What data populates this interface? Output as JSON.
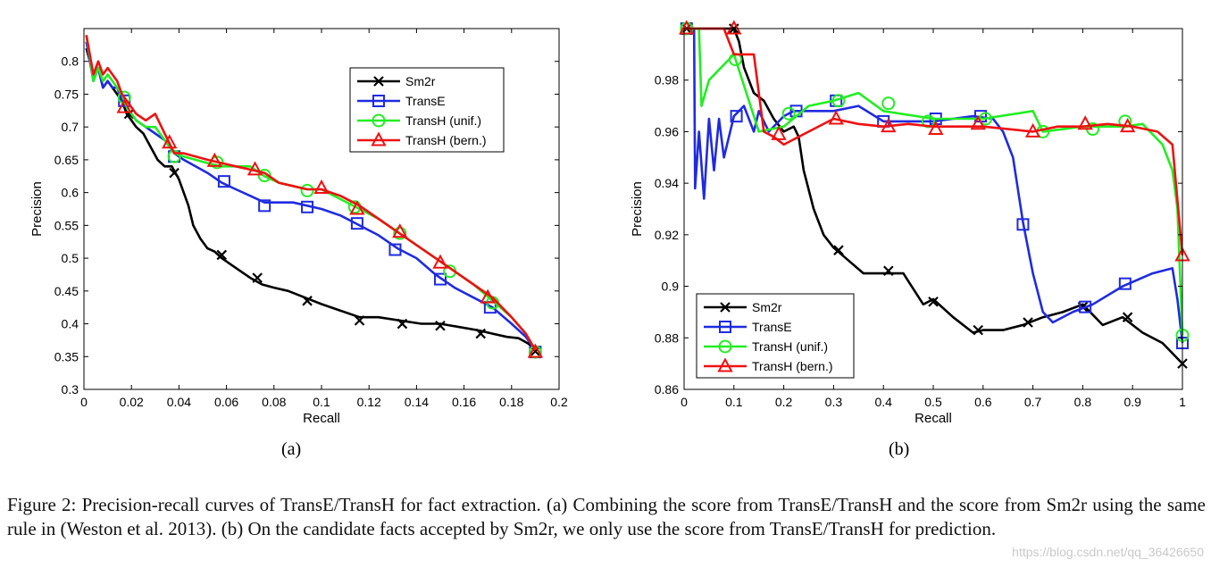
{
  "colors": {
    "Sm2r": "#000000",
    "TransE": "#1f2be0",
    "TransH_unif": "#22ee22",
    "TransH_bern": "#ee1111"
  },
  "panel_labels": [
    "(a)",
    "(b)"
  ],
  "caption": "Figure 2: Precision-recall curves of TransE/TransH for fact extraction. (a) Combining the score from TransE/TransH and the score from Sm2r using the same rule in (Weston et al. 2013). (b) On the candidate facts accepted by Sm2r, we only use the score from TransE/TransH for prediction.",
  "watermark": "https://blog.csdn.net/qq_36426650",
  "chart_data": [
    {
      "type": "line",
      "panel": "(a)",
      "xlabel": "Recall",
      "ylabel": "Precision",
      "xlim": [
        0,
        0.2
      ],
      "ylim": [
        0.3,
        0.85
      ],
      "xticks": [
        0,
        0.02,
        0.04,
        0.06,
        0.08,
        0.1,
        0.12,
        0.14,
        0.16,
        0.18,
        0.2
      ],
      "yticks": [
        0.3,
        0.35,
        0.4,
        0.45,
        0.5,
        0.55,
        0.6,
        0.65,
        0.7,
        0.75,
        0.8
      ],
      "xtick_labels": [
        "0",
        "0.02",
        "0.04",
        "0.06",
        "0.08",
        "0.1",
        "0.12",
        "0.14",
        "0.16",
        "0.18",
        "0.2"
      ],
      "ytick_labels": [
        "0.3",
        "0.35",
        "0.4",
        "0.45",
        "0.5",
        "0.55",
        "0.6",
        "0.65",
        "0.7",
        "0.75",
        "0.8"
      ],
      "legend_position": "top-right",
      "series": [
        {
          "name": "Sm2r",
          "marker": "x",
          "x": [
            0.001,
            0.004,
            0.006,
            0.008,
            0.01,
            0.012,
            0.014,
            0.016,
            0.018,
            0.02,
            0.022,
            0.025,
            0.028,
            0.031,
            0.034,
            0.037,
            0.04,
            0.042,
            0.044,
            0.046,
            0.049,
            0.052,
            0.055,
            0.058,
            0.062,
            0.066,
            0.07,
            0.075,
            0.08,
            0.086,
            0.093,
            0.1,
            0.108,
            0.116,
            0.124,
            0.133,
            0.142,
            0.15,
            0.158,
            0.166,
            0.172,
            0.178,
            0.183,
            0.187,
            0.19
          ],
          "y": [
            0.82,
            0.78,
            0.79,
            0.76,
            0.77,
            0.76,
            0.75,
            0.74,
            0.72,
            0.71,
            0.7,
            0.69,
            0.67,
            0.65,
            0.64,
            0.64,
            0.62,
            0.6,
            0.58,
            0.55,
            0.53,
            0.515,
            0.51,
            0.5,
            0.49,
            0.48,
            0.47,
            0.46,
            0.455,
            0.45,
            0.44,
            0.43,
            0.42,
            0.41,
            0.41,
            0.405,
            0.4,
            0.4,
            0.395,
            0.39,
            0.385,
            0.38,
            0.378,
            0.37,
            0.36
          ],
          "markers_x": [
            0.019,
            0.038,
            0.058,
            0.073,
            0.094,
            0.116,
            0.134,
            0.15,
            0.167,
            0.19
          ],
          "markers_y": [
            0.72,
            0.63,
            0.505,
            0.47,
            0.435,
            0.405,
            0.4,
            0.397,
            0.385,
            0.358
          ]
        },
        {
          "name": "TransE",
          "marker": "square",
          "x": [
            0.001,
            0.004,
            0.006,
            0.008,
            0.01,
            0.012,
            0.014,
            0.016,
            0.018,
            0.022,
            0.026,
            0.03,
            0.034,
            0.038,
            0.042,
            0.047,
            0.052,
            0.058,
            0.064,
            0.07,
            0.076,
            0.082,
            0.088,
            0.094,
            0.1,
            0.108,
            0.116,
            0.124,
            0.132,
            0.14,
            0.148,
            0.156,
            0.164,
            0.172,
            0.18,
            0.186,
            0.19
          ],
          "y": [
            0.83,
            0.77,
            0.79,
            0.76,
            0.77,
            0.76,
            0.76,
            0.74,
            0.73,
            0.71,
            0.7,
            0.69,
            0.68,
            0.66,
            0.65,
            0.64,
            0.63,
            0.615,
            0.605,
            0.595,
            0.585,
            0.585,
            0.585,
            0.58,
            0.575,
            0.565,
            0.55,
            0.535,
            0.515,
            0.5,
            0.475,
            0.455,
            0.44,
            0.425,
            0.4,
            0.38,
            0.36
          ],
          "markers_x": [
            0.017,
            0.038,
            0.059,
            0.076,
            0.094,
            0.115,
            0.131,
            0.15,
            0.171,
            0.19
          ],
          "markers_y": [
            0.74,
            0.655,
            0.617,
            0.58,
            0.578,
            0.553,
            0.513,
            0.468,
            0.425,
            0.357
          ]
        },
        {
          "name": "TransH (unif.)",
          "marker": "circle",
          "x": [
            0.001,
            0.004,
            0.006,
            0.008,
            0.01,
            0.012,
            0.014,
            0.016,
            0.018,
            0.022,
            0.026,
            0.03,
            0.034,
            0.038,
            0.042,
            0.047,
            0.052,
            0.058,
            0.064,
            0.07,
            0.076,
            0.082,
            0.088,
            0.094,
            0.1,
            0.108,
            0.116,
            0.124,
            0.132,
            0.14,
            0.148,
            0.156,
            0.164,
            0.172,
            0.18,
            0.186,
            0.19
          ],
          "y": [
            0.84,
            0.77,
            0.79,
            0.77,
            0.78,
            0.77,
            0.76,
            0.75,
            0.73,
            0.71,
            0.7,
            0.7,
            0.68,
            0.66,
            0.655,
            0.65,
            0.645,
            0.64,
            0.64,
            0.64,
            0.625,
            0.615,
            0.61,
            0.605,
            0.605,
            0.59,
            0.575,
            0.56,
            0.54,
            0.52,
            0.5,
            0.48,
            0.46,
            0.435,
            0.41,
            0.385,
            0.36
          ],
          "markers_x": [
            0.017,
            0.038,
            0.056,
            0.076,
            0.094,
            0.114,
            0.133,
            0.154,
            0.172,
            0.19
          ],
          "markers_y": [
            0.745,
            0.655,
            0.646,
            0.626,
            0.603,
            0.578,
            0.538,
            0.48,
            0.432,
            0.357
          ]
        },
        {
          "name": "TransH (bern.)",
          "marker": "triangle",
          "x": [
            0.001,
            0.004,
            0.006,
            0.008,
            0.01,
            0.012,
            0.014,
            0.016,
            0.018,
            0.022,
            0.026,
            0.03,
            0.034,
            0.038,
            0.042,
            0.047,
            0.052,
            0.058,
            0.064,
            0.07,
            0.076,
            0.082,
            0.088,
            0.094,
            0.1,
            0.108,
            0.116,
            0.124,
            0.132,
            0.14,
            0.148,
            0.156,
            0.164,
            0.172,
            0.18,
            0.186,
            0.19
          ],
          "y": [
            0.84,
            0.78,
            0.8,
            0.78,
            0.79,
            0.78,
            0.77,
            0.75,
            0.74,
            0.72,
            0.71,
            0.72,
            0.69,
            0.66,
            0.66,
            0.655,
            0.65,
            0.645,
            0.64,
            0.635,
            0.63,
            0.615,
            0.61,
            0.605,
            0.605,
            0.595,
            0.58,
            0.56,
            0.54,
            0.52,
            0.5,
            0.48,
            0.46,
            0.44,
            0.41,
            0.385,
            0.36
          ],
          "markers_x": [
            0.017,
            0.036,
            0.055,
            0.072,
            0.1,
            0.115,
            0.133,
            0.15,
            0.17,
            0.19
          ],
          "markers_y": [
            0.73,
            0.676,
            0.648,
            0.635,
            0.607,
            0.575,
            0.54,
            0.493,
            0.44,
            0.357
          ]
        }
      ]
    },
    {
      "type": "line",
      "panel": "(b)",
      "xlabel": "Recall",
      "ylabel": "Precision",
      "xlim": [
        0,
        1
      ],
      "ylim": [
        0.86,
        1.0
      ],
      "xticks": [
        0,
        0.1,
        0.2,
        0.3,
        0.4,
        0.5,
        0.6,
        0.7,
        0.8,
        0.9,
        1
      ],
      "yticks": [
        0.86,
        0.88,
        0.9,
        0.92,
        0.94,
        0.96,
        0.98
      ],
      "xtick_labels": [
        "0",
        "0.1",
        "0.2",
        "0.3",
        "0.4",
        "0.5",
        "0.6",
        "0.7",
        "0.8",
        "0.9",
        "1"
      ],
      "ytick_labels": [
        "0.86",
        "0.88",
        "0.9",
        "0.92",
        "0.94",
        "0.96",
        "0.98"
      ],
      "legend_position": "bottom-left",
      "series": [
        {
          "name": "Sm2r",
          "marker": "x",
          "x": [
            0,
            0.09,
            0.1,
            0.11,
            0.12,
            0.14,
            0.16,
            0.18,
            0.2,
            0.22,
            0.23,
            0.24,
            0.26,
            0.28,
            0.3,
            0.33,
            0.36,
            0.4,
            0.44,
            0.48,
            0.5,
            0.54,
            0.58,
            0.6,
            0.64,
            0.68,
            0.72,
            0.76,
            0.8,
            0.84,
            0.88,
            0.92,
            0.96,
            1.0
          ],
          "y": [
            1.0,
            1.0,
            1.0,
            0.995,
            0.985,
            0.975,
            0.972,
            0.965,
            0.96,
            0.962,
            0.958,
            0.945,
            0.93,
            0.92,
            0.915,
            0.91,
            0.905,
            0.905,
            0.905,
            0.893,
            0.895,
            0.888,
            0.882,
            0.883,
            0.883,
            0.885,
            0.888,
            0.89,
            0.893,
            0.885,
            0.888,
            0.882,
            0.878,
            0.87
          ],
          "markers_x": [
            0.005,
            0.1,
            0.31,
            0.41,
            0.5,
            0.59,
            0.69,
            0.8,
            0.89,
            1.0
          ],
          "markers_y": [
            1.0,
            1.0,
            0.914,
            0.906,
            0.894,
            0.883,
            0.886,
            0.892,
            0.888,
            0.87
          ]
        },
        {
          "name": "TransE",
          "marker": "square",
          "x": [
            0,
            0.02,
            0.022,
            0.03,
            0.04,
            0.05,
            0.06,
            0.07,
            0.08,
            0.1,
            0.12,
            0.14,
            0.15,
            0.17,
            0.2,
            0.22,
            0.3,
            0.35,
            0.4,
            0.5,
            0.58,
            0.62,
            0.64,
            0.66,
            0.68,
            0.7,
            0.72,
            0.74,
            0.78,
            0.82,
            0.88,
            0.94,
            0.98,
            0.99,
            1.0
          ],
          "y": [
            1.0,
            1.0,
            0.938,
            0.96,
            0.934,
            0.965,
            0.945,
            0.965,
            0.95,
            0.966,
            0.97,
            0.96,
            0.968,
            0.96,
            0.966,
            0.968,
            0.968,
            0.97,
            0.964,
            0.964,
            0.966,
            0.965,
            0.96,
            0.95,
            0.925,
            0.905,
            0.89,
            0.886,
            0.89,
            0.893,
            0.9,
            0.905,
            0.907,
            0.895,
            0.878
          ],
          "markers_x": [
            0.005,
            0.105,
            0.225,
            0.305,
            0.4,
            0.505,
            0.595,
            0.68,
            0.805,
            0.885,
            1.0
          ],
          "markers_y": [
            1.0,
            0.966,
            0.968,
            0.972,
            0.964,
            0.965,
            0.966,
            0.924,
            0.892,
            0.901,
            0.878
          ]
        },
        {
          "name": "TransH (unif.)",
          "marker": "circle",
          "x": [
            0,
            0.03,
            0.035,
            0.05,
            0.08,
            0.1,
            0.15,
            0.2,
            0.25,
            0.3,
            0.35,
            0.4,
            0.5,
            0.6,
            0.7,
            0.72,
            0.8,
            0.88,
            0.92,
            0.96,
            0.98,
            0.99,
            1.0
          ],
          "y": [
            1.0,
            1.0,
            0.97,
            0.98,
            0.986,
            0.99,
            0.96,
            0.962,
            0.97,
            0.972,
            0.975,
            0.968,
            0.965,
            0.965,
            0.968,
            0.96,
            0.962,
            0.962,
            0.963,
            0.955,
            0.945,
            0.93,
            0.881
          ],
          "markers_x": [
            0.005,
            0.103,
            0.21,
            0.31,
            0.41,
            0.49,
            0.605,
            0.72,
            0.82,
            0.885,
            1.0
          ],
          "markers_y": [
            1.0,
            0.988,
            0.967,
            0.972,
            0.971,
            0.964,
            0.965,
            0.96,
            0.961,
            0.964,
            0.881
          ]
        },
        {
          "name": "TransH (bern.)",
          "marker": "triangle",
          "x": [
            0,
            0.08,
            0.1,
            0.12,
            0.14,
            0.16,
            0.18,
            0.2,
            0.25,
            0.3,
            0.35,
            0.4,
            0.45,
            0.5,
            0.55,
            0.6,
            0.7,
            0.75,
            0.8,
            0.85,
            0.9,
            0.95,
            0.98,
            1.0
          ],
          "y": [
            1.0,
            1.0,
            0.99,
            0.99,
            0.99,
            0.96,
            0.958,
            0.955,
            0.96,
            0.965,
            0.963,
            0.962,
            0.963,
            0.962,
            0.962,
            0.962,
            0.96,
            0.962,
            0.962,
            0.963,
            0.962,
            0.96,
            0.955,
            0.912
          ],
          "markers_x": [
            0.005,
            0.1,
            0.19,
            0.305,
            0.41,
            0.505,
            0.59,
            0.7,
            0.805,
            0.89,
            1.0
          ],
          "markers_y": [
            1.0,
            1.0,
            0.959,
            0.965,
            0.962,
            0.961,
            0.963,
            0.96,
            0.963,
            0.962,
            0.912
          ]
        }
      ]
    }
  ]
}
